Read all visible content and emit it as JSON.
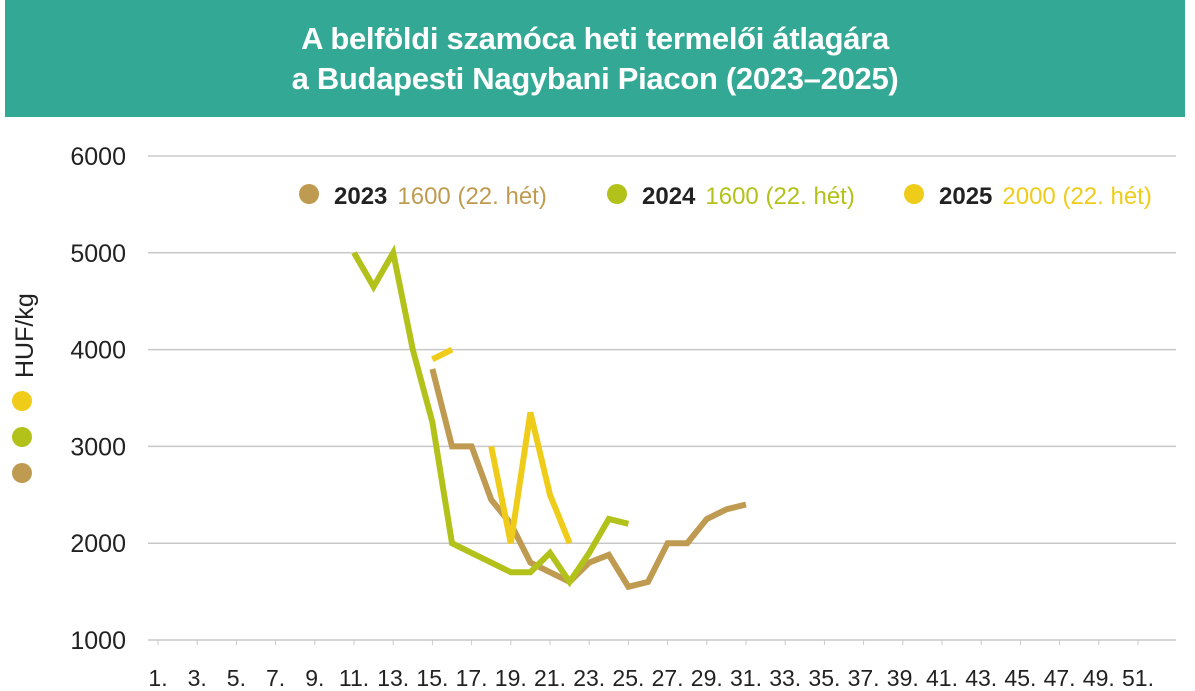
{
  "chart_data": {
    "type": "line",
    "title": "A belföldi szamóca heti termelői átlagára",
    "subtitle": "a Budapesti Nagybani Piacon (2023–2025)",
    "ylabel": "HUF/kg",
    "xlabel": "",
    "ylim": [
      1000,
      6000
    ],
    "yticks": [
      "1000",
      "2000",
      "3000",
      "4000",
      "5000",
      "6000"
    ],
    "xlim": [
      1,
      52
    ],
    "xticks": [
      "1.",
      "3.",
      "5.",
      "7.",
      "9.",
      "11.",
      "13.",
      "15.",
      "17.",
      "19.",
      "21.",
      "23.",
      "25.",
      "27.",
      "29.",
      "31.",
      "33.",
      "35.",
      "37.",
      "39.",
      "41.",
      "43.",
      "45.",
      "47.",
      "49.",
      "51."
    ],
    "grid": "horizontal",
    "legend_position": "top-right",
    "series": [
      {
        "name": "2023",
        "legend_value": "1600 (22. hét)",
        "color": "#bf9b52",
        "x": [
          15,
          16,
          17,
          18,
          19,
          20,
          21,
          22,
          23,
          24,
          25,
          26,
          27,
          28,
          29,
          30,
          31
        ],
        "y": [
          3800,
          3000,
          3000,
          2450,
          2200,
          1800,
          1700,
          1600,
          1800,
          1880,
          1550,
          1600,
          2000,
          2000,
          2250,
          2350,
          2400
        ]
      },
      {
        "name": "2024",
        "legend_value": "1600 (22. hét)",
        "color": "#b3c21a",
        "x": [
          11,
          12,
          13,
          14,
          15,
          16,
          17,
          18,
          19,
          20,
          21,
          22,
          23,
          24,
          25
        ],
        "y": [
          5000,
          4650,
          5000,
          4000,
          3250,
          2000,
          1900,
          1800,
          1700,
          1700,
          1900,
          1600,
          1900,
          2250,
          2200
        ]
      },
      {
        "name": "2025",
        "legend_value": "2000 (22. hét)",
        "color": "#f0cc1a",
        "x": [
          15,
          16,
          null,
          18,
          19,
          20,
          21,
          22
        ],
        "y": [
          3900,
          4000,
          null,
          3000,
          2000,
          3350,
          2500,
          2000
        ]
      }
    ]
  }
}
